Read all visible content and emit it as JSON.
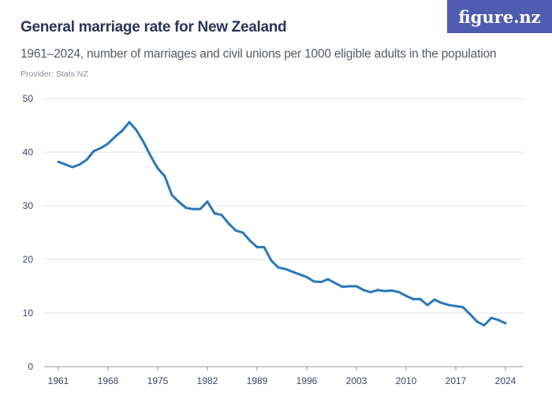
{
  "header": {
    "title": "General marriage rate for New Zealand",
    "subtitle": "1961–2024, number of marriages and civil unions per 1000 eligible adults in the population",
    "provider": "Provider: Stats NZ",
    "logo": "figure.nz"
  },
  "chart_data": {
    "type": "line",
    "title": "General marriage rate for New Zealand",
    "subtitle": "1961–2024, number of marriages and civil unions per 1000 eligible adults in the population",
    "xlabel": "",
    "ylabel": "",
    "ylim": [
      0,
      50
    ],
    "xlim": [
      1961,
      2024
    ],
    "yticks": [
      0,
      10,
      20,
      30,
      40,
      50
    ],
    "xticks": [
      1961,
      1968,
      1975,
      1982,
      1989,
      1996,
      2003,
      2010,
      2017,
      2024
    ],
    "grid": true,
    "line_color": "#2a78b5",
    "x": [
      1961,
      1962,
      1963,
      1964,
      1965,
      1966,
      1967,
      1968,
      1969,
      1970,
      1971,
      1972,
      1973,
      1974,
      1975,
      1976,
      1977,
      1978,
      1979,
      1980,
      1981,
      1982,
      1983,
      1984,
      1985,
      1986,
      1987,
      1988,
      1989,
      1990,
      1991,
      1992,
      1993,
      1994,
      1995,
      1996,
      1997,
      1998,
      1999,
      2000,
      2001,
      2002,
      2003,
      2004,
      2005,
      2006,
      2007,
      2008,
      2009,
      2010,
      2011,
      2012,
      2013,
      2014,
      2015,
      2016,
      2017,
      2018,
      2019,
      2020,
      2021,
      2022,
      2023,
      2024
    ],
    "values": [
      38.2,
      37.7,
      37.2,
      37.7,
      38.6,
      40.2,
      40.8,
      41.6,
      42.9,
      44.0,
      45.6,
      44.1,
      41.9,
      39.3,
      37.0,
      35.5,
      32.0,
      30.7,
      29.6,
      29.4,
      29.4,
      30.8,
      28.6,
      28.3,
      26.7,
      25.4,
      25.0,
      23.5,
      22.3,
      22.3,
      19.8,
      18.5,
      18.2,
      17.7,
      17.2,
      16.7,
      15.9,
      15.8,
      16.3,
      15.6,
      14.9,
      15.0,
      15.0,
      14.3,
      13.9,
      14.3,
      14.1,
      14.2,
      13.9,
      13.2,
      12.6,
      12.6,
      11.5,
      12.5,
      11.9,
      11.5,
      11.3,
      11.1,
      9.8,
      8.4,
      7.7,
      9.1,
      8.7,
      8.1
    ]
  }
}
